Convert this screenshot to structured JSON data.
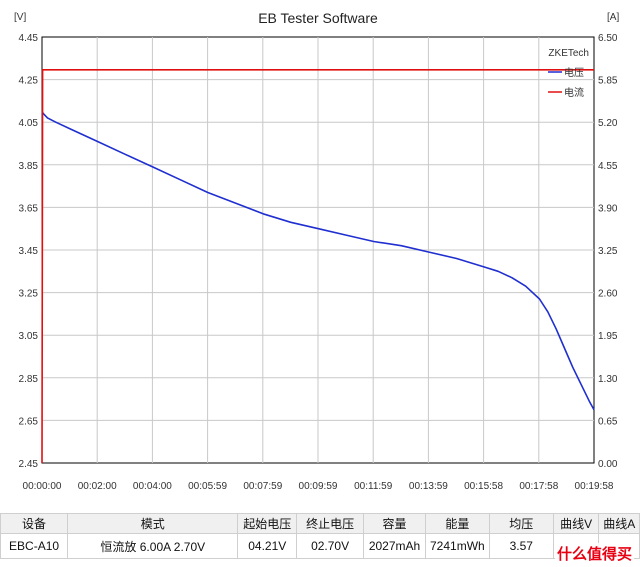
{
  "chart_data": {
    "type": "line",
    "title": "EB Tester Software",
    "watermark_brand": "ZKETech",
    "left_unit": "[V]",
    "right_unit": "[A]",
    "y_left_ticks": [
      "4.45",
      "4.25",
      "4.05",
      "3.85",
      "3.65",
      "3.45",
      "3.25",
      "3.05",
      "2.85",
      "2.65",
      "2.45"
    ],
    "y_right_ticks": [
      "6.50",
      "5.85",
      "5.20",
      "4.55",
      "3.90",
      "3.25",
      "2.60",
      "1.95",
      "1.30",
      "0.65",
      "0.00"
    ],
    "x_ticks": [
      "00:00:00",
      "00:02:00",
      "00:04:00",
      "00:05:59",
      "00:07:59",
      "00:09:59",
      "00:11:59",
      "00:13:59",
      "00:15:58",
      "00:17:58",
      "00:19:58"
    ],
    "ylim_left": [
      2.45,
      4.45
    ],
    "ylim_right": [
      0,
      6.5
    ],
    "xlim_min": [
      0,
      19.97
    ],
    "grid": true,
    "legend_position": "top-right",
    "series": [
      {
        "name": "电压",
        "axis": "left",
        "color": "#1f2fd0",
        "x_min": [
          0,
          0.05,
          0.2,
          0.5,
          1,
          2,
          3,
          4,
          5,
          6,
          7,
          8,
          9,
          10,
          11,
          12,
          13,
          14,
          15,
          16,
          16.5,
          17,
          17.5,
          18,
          18.3,
          18.6,
          18.9,
          19.2,
          19.5,
          19.8,
          19.97
        ],
        "values": [
          4.1,
          4.09,
          4.07,
          4.05,
          4.02,
          3.96,
          3.9,
          3.84,
          3.78,
          3.72,
          3.67,
          3.62,
          3.58,
          3.55,
          3.52,
          3.49,
          3.47,
          3.44,
          3.41,
          3.37,
          3.35,
          3.32,
          3.28,
          3.22,
          3.16,
          3.08,
          2.99,
          2.9,
          2.82,
          2.74,
          2.7
        ]
      },
      {
        "name": "电流",
        "axis": "right",
        "color": "#e01010",
        "x_min": [
          0,
          0.02,
          19.97
        ],
        "values": [
          0,
          6.0,
          6.0
        ]
      }
    ]
  },
  "info_table": {
    "headers": [
      "设备",
      "模式",
      "起始电压",
      "终止电压",
      "容量",
      "能量",
      "均压",
      "曲线V",
      "曲线A"
    ],
    "values": [
      "EBC-A10",
      "恒流放  6.00A  2.70V",
      "04.21V",
      "02.70V",
      "2027mAh",
      "7241mWh",
      "3.57",
      "",
      ""
    ]
  },
  "watermark": "什么值得买"
}
